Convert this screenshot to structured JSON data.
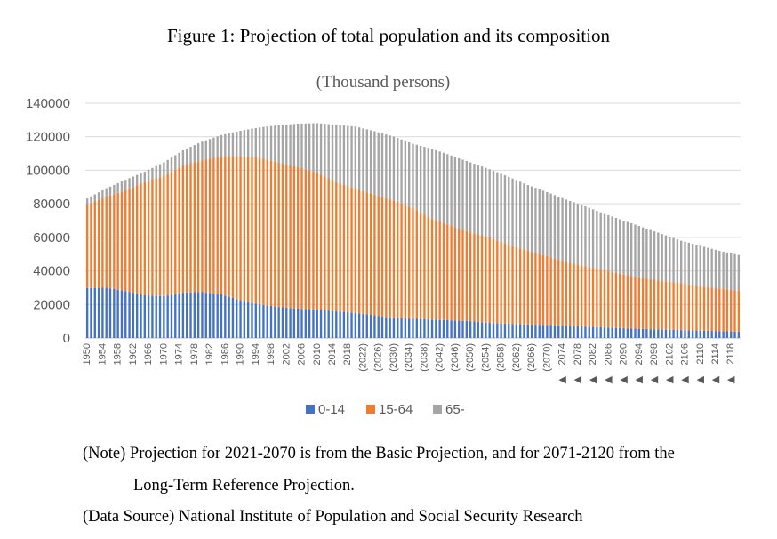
{
  "figure_title": "Figure 1: Projection of total population and its composition",
  "notes": {
    "line1": "(Note) Projection for 2021-2070 is from the Basic Projection, and for 2071-2120 from the",
    "line2": "Long-Term Reference Projection.",
    "source": "(Data Source) National Institute of Population and Social Security Research"
  },
  "colors": {
    "s0_14": "#4472c4",
    "s15_64": "#ed7d31",
    "s65": "#a5a5a5",
    "grid": "#d9d9d9"
  },
  "chart_data": {
    "type": "bar",
    "stacked": true,
    "title": "(Thousand persons)",
    "xlabel": "",
    "ylabel": "",
    "ylim": [
      0,
      140000
    ],
    "yticks": [
      0,
      20000,
      40000,
      60000,
      80000,
      100000,
      120000,
      140000
    ],
    "grid": true,
    "legend": "bottom",
    "x_start": 1950,
    "x_end": 2120,
    "tick_labels": [
      "1950",
      "1954",
      "1958",
      "1962",
      "1966",
      "1970",
      "1974",
      "1978",
      "1982",
      "1986",
      "1990",
      "1994",
      "1998",
      "2002",
      "2006",
      "2010",
      "2014",
      "2018",
      "(2022)",
      "(2026)",
      "(2030)",
      "(2034)",
      "(2038)",
      "(2042)",
      "(2046)",
      "(2050)",
      "(2054)",
      "(2058)",
      "(2062)",
      "(2066)",
      "(2070)",
      "2074",
      "2078",
      "2082",
      "2086",
      "2090",
      "2094",
      "2098",
      "2102",
      "2106",
      "2110",
      "2114",
      "2118"
    ],
    "tick_marks": [
      "",
      "",
      "",
      "",
      "",
      "",
      "",
      "",
      "",
      "",
      "",
      "",
      "",
      "",
      "",
      "",
      "",
      "",
      "",
      "",
      "",
      "",
      "",
      "",
      "",
      "",
      "",
      "",
      "",
      "",
      "",
      "◀",
      "◀",
      "◀",
      "◀",
      "◀",
      "◀",
      "◀",
      "◀",
      "◀",
      "◀",
      "◀",
      "◀"
    ],
    "series_names": [
      "0-14",
      "15-64",
      "65-"
    ],
    "anchor_years": [
      1950,
      1955,
      1960,
      1965,
      1970,
      1975,
      1980,
      1985,
      1990,
      1995,
      2000,
      2005,
      2010,
      2015,
      2020,
      2025,
      2030,
      2035,
      2040,
      2045,
      2050,
      2055,
      2060,
      2065,
      2070,
      2075,
      2080,
      2085,
      2090,
      2095,
      2100,
      2105,
      2110,
      2115,
      2120
    ],
    "anchor_0_14": [
      29800,
      30000,
      28000,
      25500,
      25000,
      27000,
      27500,
      26000,
      22500,
      20000,
      18500,
      17500,
      17000,
      16000,
      15000,
      13500,
      12000,
      11500,
      11000,
      10500,
      10000,
      9000,
      8500,
      8000,
      7800,
      7300,
      6800,
      6300,
      5800,
      5400,
      5000,
      4700,
      4400,
      4100,
      3800
    ],
    "anchor_15_64": [
      49700,
      54300,
      60000,
      67500,
      71500,
      76000,
      78500,
      82500,
      86000,
      87500,
      86000,
      84500,
      81500,
      77000,
      74000,
      72000,
      70000,
      66000,
      60000,
      56500,
      53000,
      51000,
      47000,
      44000,
      41000,
      38000,
      36000,
      34000,
      32000,
      30500,
      29000,
      28000,
      26500,
      25500,
      24500
    ],
    "anchor_total": [
      83200,
      89300,
      94300,
      99200,
      104700,
      111900,
      117100,
      121000,
      123600,
      125600,
      126900,
      127800,
      128100,
      127100,
      126100,
      123300,
      120100,
      115800,
      112800,
      108800,
      104700,
      100600,
      96100,
      91200,
      87000,
      82500,
      78500,
      74000,
      70000,
      66000,
      62000,
      58000,
      55000,
      52000,
      49500
    ]
  }
}
